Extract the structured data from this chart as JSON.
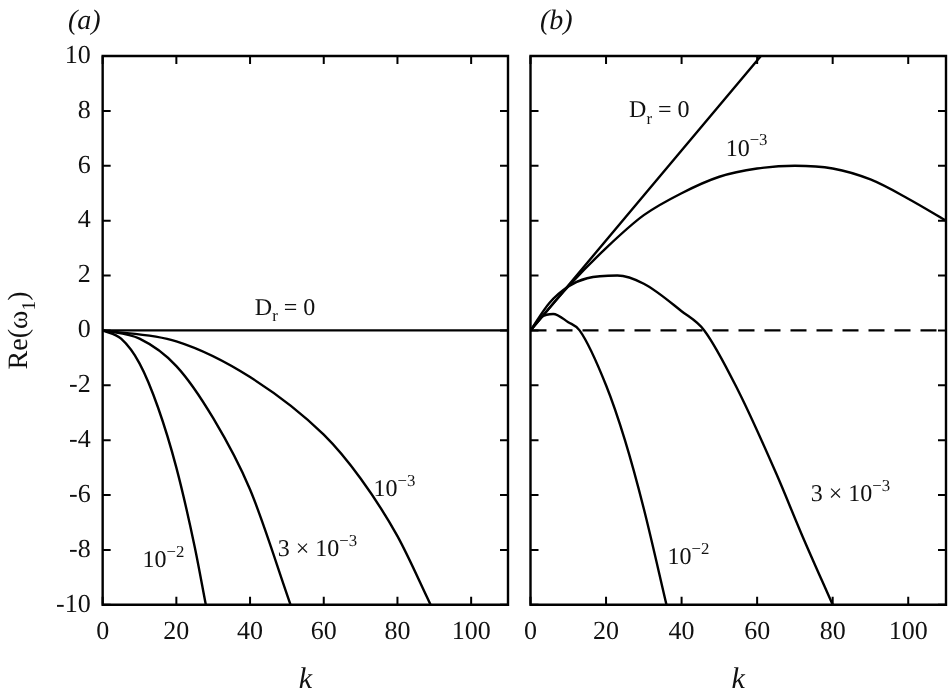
{
  "chart_data": [
    {
      "type": "line",
      "title": "(a)",
      "xlabel": "k",
      "ylabel": "Re(ω$_{1}$)",
      "xlim": [
        0,
        110
      ],
      "xticks": [
        0,
        20,
        40,
        60,
        80,
        100
      ],
      "ylim": [
        -10,
        10
      ],
      "yticks": [
        -10,
        -8,
        -6,
        -4,
        -2,
        0,
        2,
        4,
        6,
        8,
        10
      ],
      "marker": "none",
      "line_style": "solid",
      "series": [
        {
          "name": "D$_{r}$ = 0",
          "color": "#000000",
          "x": [
            0,
            110
          ],
          "values": [
            0,
            0
          ]
        },
        {
          "name": "10$^{−3}$",
          "color": "#000000",
          "x": [
            0,
            20,
            40,
            60,
            70,
            80,
            89
          ],
          "values": [
            0,
            -0.4,
            -1.7,
            -3.8,
            -5.4,
            -7.5,
            -10
          ]
        },
        {
          "name": "3 × 10$^{−3}$",
          "color": "#000000",
          "x": [
            0,
            10,
            20,
            30,
            40,
            51
          ],
          "values": [
            0,
            -0.3,
            -1.3,
            -3.2,
            -5.8,
            -10
          ]
        },
        {
          "name": "10$^{−2}$",
          "color": "#000000",
          "x": [
            0,
            5,
            10,
            15,
            20,
            25,
            28
          ],
          "values": [
            0,
            -0.3,
            -1.2,
            -2.8,
            -5,
            -7.9,
            -10
          ]
        }
      ]
    },
    {
      "type": "line",
      "title": "(b)",
      "xlabel": "k",
      "xlim": [
        0,
        110
      ],
      "xticks": [
        0,
        20,
        40,
        60,
        80,
        100
      ],
      "ylim": [
        -10,
        10
      ],
      "yticks": [
        -10,
        -8,
        -6,
        -4,
        -2,
        0,
        2,
        4,
        6,
        8,
        10
      ],
      "tick_labels": "x",
      "marker": "none",
      "line_style": "solid",
      "series": [
        {
          "name": "D$_{r}$ = 0",
          "color": "#000000",
          "x": [
            0,
            61
          ],
          "values": [
            0,
            10
          ]
        },
        {
          "name": "10$^{−3}$",
          "color": "#000000",
          "x": [
            0,
            10,
            20,
            30,
            40,
            50,
            60,
            70,
            80,
            90,
            100,
            110
          ],
          "values": [
            0,
            1.6,
            3.0,
            4.2,
            5.0,
            5.6,
            5.9,
            6.0,
            5.9,
            5.5,
            4.8,
            4.0
          ]
        },
        {
          "name": "3 × 10$^{−3}$",
          "color": "#000000",
          "x": [
            0,
            5,
            10,
            15,
            23,
            30,
            40,
            46,
            55,
            65,
            72,
            80
          ],
          "values": [
            0,
            1.0,
            1.6,
            1.9,
            2.0,
            1.7,
            0.7,
            0,
            -2.2,
            -5.2,
            -7.5,
            -10
          ]
        },
        {
          "name": "10$^{−2}$",
          "color": "#000000",
          "x": [
            0,
            3,
            6,
            10,
            13,
            20,
            25,
            30,
            36
          ],
          "values": [
            0,
            0.5,
            0.6,
            0.3,
            0,
            -2,
            -4,
            -6.5,
            -10
          ]
        }
      ],
      "ref_lines": [
        {
          "axis": "y",
          "value": 0,
          "color": "#000000",
          "line_style": "dashed"
        }
      ]
    }
  ]
}
